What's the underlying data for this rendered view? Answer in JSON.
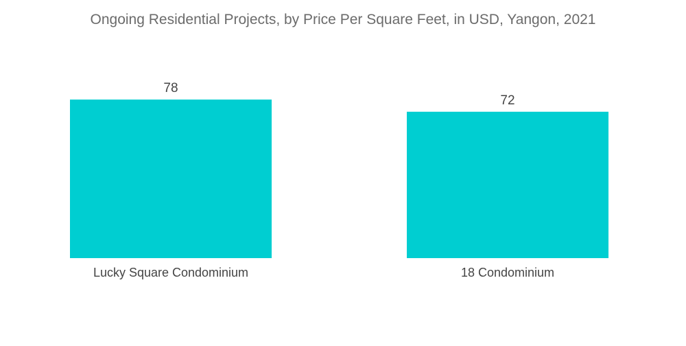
{
  "chart_data": {
    "type": "bar",
    "title": "Ongoing Residential Projects, by Price Per Square Feet, in USD, Yangon, 2021",
    "categories": [
      "Lucky Square Condominium",
      "18 Condominium"
    ],
    "values": [
      78,
      72
    ],
    "xlabel": "",
    "ylabel": "",
    "ylim": [
      0,
      78
    ],
    "grid": false,
    "legend": "none",
    "bar_color": "#00CED1"
  }
}
